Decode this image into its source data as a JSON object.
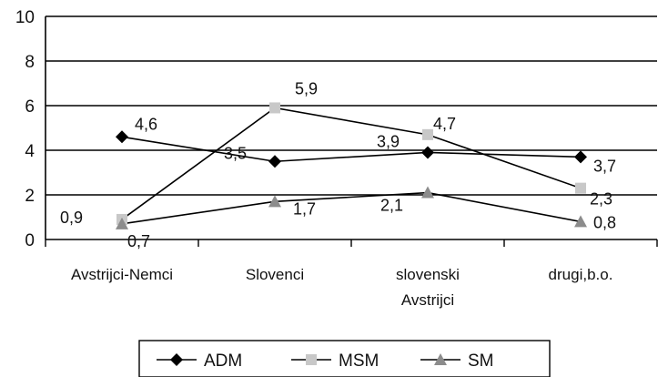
{
  "chart_data": {
    "type": "line",
    "title": "",
    "xlabel": "",
    "ylabel": "",
    "ylim": [
      0,
      10
    ],
    "yticks": [
      0,
      2,
      4,
      6,
      8,
      10
    ],
    "grid": true,
    "legend_position": "bottom",
    "categories": [
      [
        "Avstrijci-Nemci"
      ],
      [
        "Slovenci"
      ],
      [
        "slovenski",
        "Avstrijci"
      ],
      [
        "drugi,b.o."
      ]
    ],
    "series": [
      {
        "name": "ADM",
        "values": [
          4.6,
          3.5,
          3.9,
          3.7
        ],
        "labels": [
          "4,6",
          "3,5",
          "3,9",
          "3,7"
        ],
        "color": "#000000",
        "marker": "diamond"
      },
      {
        "name": "MSM",
        "values": [
          0.9,
          5.9,
          4.7,
          2.3
        ],
        "labels": [
          "0,9",
          "5,9",
          "4,7",
          "2,3"
        ],
        "color": "#c8c8c8",
        "marker": "square"
      },
      {
        "name": "SM",
        "values": [
          0.7,
          1.7,
          2.1,
          0.8
        ],
        "labels": [
          "0,7",
          "1,7",
          "2,1",
          "0,8"
        ],
        "color": "#8c8c8c",
        "marker": "triangle"
      }
    ]
  }
}
